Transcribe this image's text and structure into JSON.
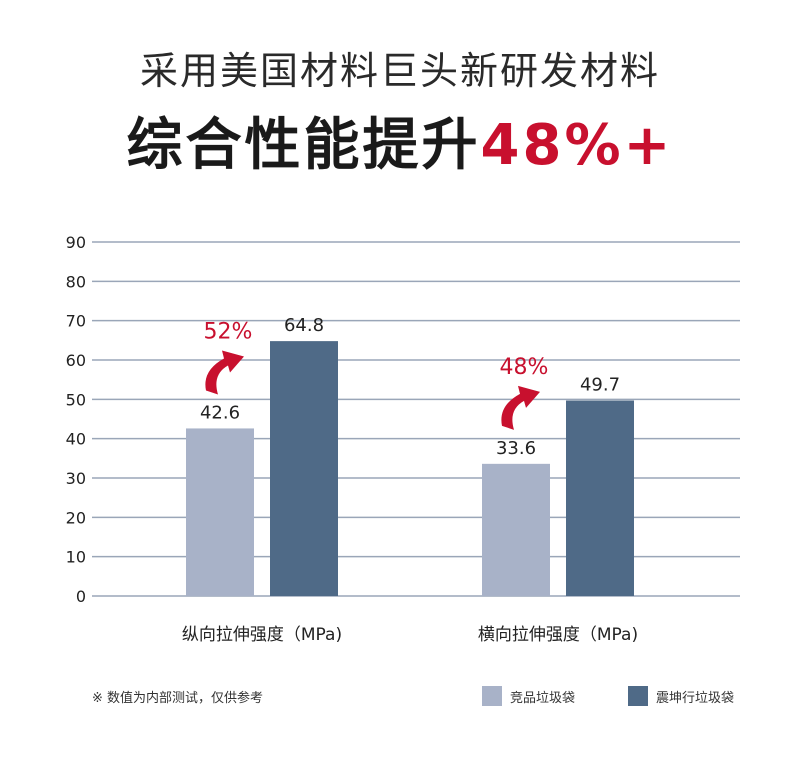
{
  "header": {
    "subtitle": "采用美国材料巨头新研发材料",
    "headline_main": "综合性能提升",
    "headline_accent": "48%+"
  },
  "footnote": "※  数值为内部测试，仅供参考",
  "colors": {
    "competitor": "#a8b2c8",
    "zhenkun": "#4f6a87",
    "accent": "#c8102e",
    "grid": "#9aa6b8"
  },
  "chart_data": {
    "type": "bar",
    "categories": [
      "纵向拉伸强度（MPa)",
      "横向拉伸强度（MPa)"
    ],
    "series": [
      {
        "name": "竞品垃圾袋",
        "values": [
          42.6,
          33.6
        ]
      },
      {
        "name": "震坤行垃圾袋",
        "values": [
          64.8,
          49.7
        ]
      }
    ],
    "data_labels": [
      [
        "42.6",
        "33.6"
      ],
      [
        "64.8",
        "49.7"
      ]
    ],
    "improvement_labels": [
      "52%",
      "48%"
    ],
    "y_ticks": [
      0,
      10,
      20,
      30,
      40,
      50,
      60,
      70,
      80,
      90
    ],
    "ylim": [
      0,
      90
    ],
    "grid": true,
    "legend_position": "bottom-right"
  }
}
